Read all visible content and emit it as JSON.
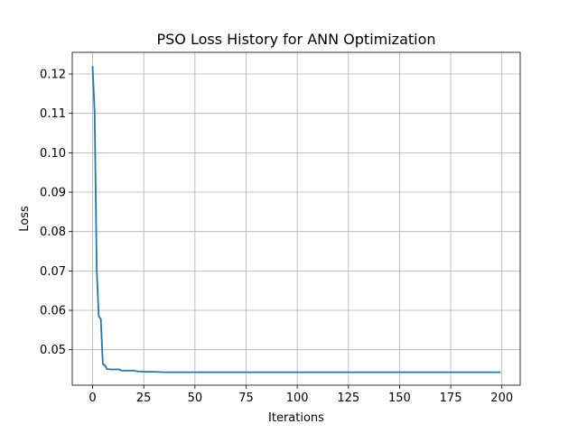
{
  "chart_data": {
    "type": "line",
    "title": "PSO Loss History for ANN Optimization",
    "xlabel": "Iterations",
    "ylabel": "Loss",
    "xlim": [
      -9.95,
      208.95
    ],
    "ylim": [
      0.041,
      0.1255
    ],
    "grid": true,
    "xticks": [
      0,
      25,
      50,
      75,
      100,
      125,
      150,
      175,
      200
    ],
    "yticks": [
      0.05,
      0.06,
      0.07,
      0.08,
      0.09,
      0.1,
      0.11,
      0.12
    ],
    "ytick_labels": [
      "0.05",
      "0.06",
      "0.07",
      "0.08",
      "0.09",
      "0.10",
      "0.11",
      "0.12"
    ],
    "series": [
      {
        "color": "#1f77b4",
        "x": [
          0,
          1,
          2,
          3,
          4,
          5,
          6,
          7,
          9,
          10,
          11,
          12,
          13,
          14,
          16,
          18,
          20,
          21,
          22,
          24,
          25,
          30,
          35,
          40,
          50,
          60,
          80,
          100,
          120,
          140,
          160,
          180,
          199
        ],
        "y": [
          0.1218,
          0.11,
          0.0705,
          0.0585,
          0.0578,
          0.0463,
          0.0461,
          0.0451,
          0.045,
          0.045,
          0.045,
          0.045,
          0.045,
          0.0447,
          0.0447,
          0.0447,
          0.0447,
          0.0446,
          0.0445,
          0.0445,
          0.0444,
          0.0444,
          0.0443,
          0.0443,
          0.0443,
          0.0443,
          0.0443,
          0.0443,
          0.0443,
          0.0443,
          0.0443,
          0.0443,
          0.0443
        ]
      }
    ]
  }
}
